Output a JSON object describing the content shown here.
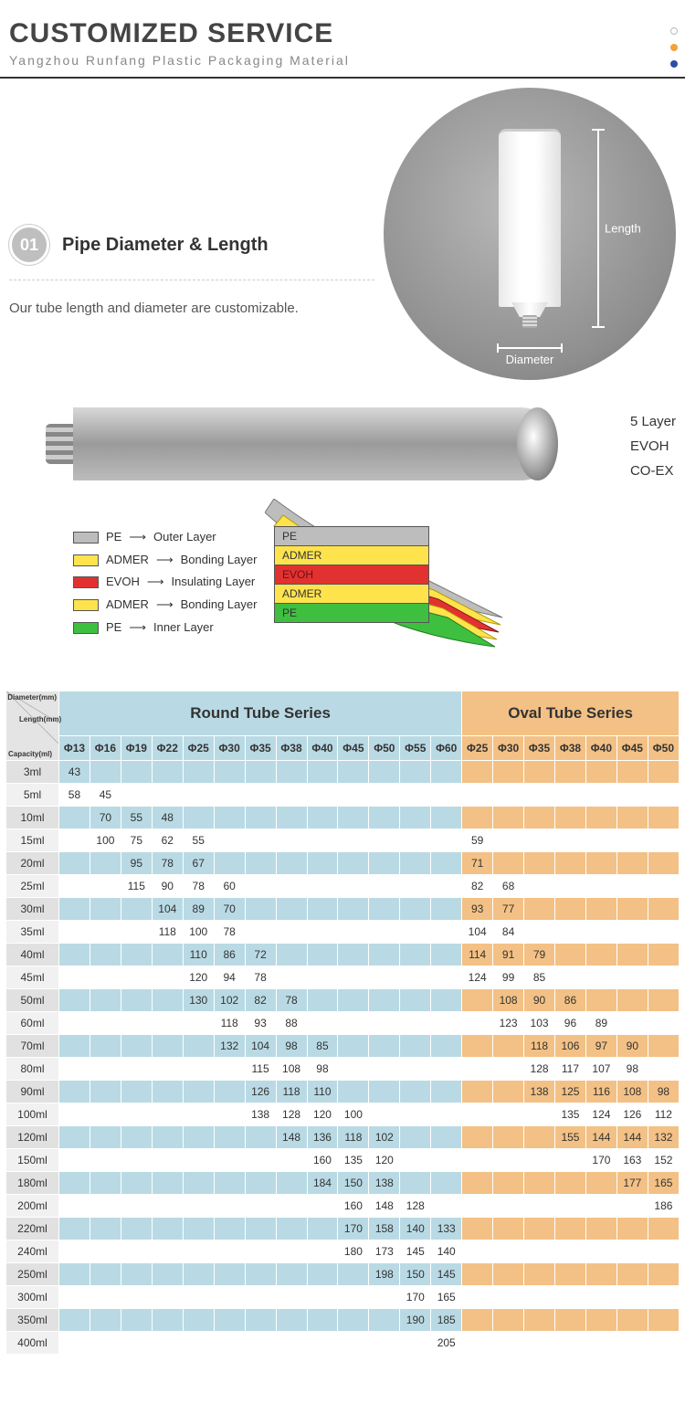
{
  "header": {
    "title": "CUSTOMIZED SERVICE",
    "subtitle": "Yangzhou Runfang Plastic Packaging Material",
    "dots": [
      "#ffffff",
      "#f3a23a",
      "#2c4fa0"
    ]
  },
  "section01": {
    "num": "01",
    "title": "Pipe Diameter & Length",
    "desc": "Our tube length and diameter are customizable.",
    "length_label": "Length",
    "diameter_label": "Diameter"
  },
  "layerDiagram": {
    "rightLabels": [
      "5 Layer",
      "EVOH",
      "CO-EX"
    ],
    "legend": [
      {
        "color": "#bdbdbd",
        "name": "PE",
        "role": "Outer Layer"
      },
      {
        "color": "#ffe34d",
        "name": "ADMER",
        "role": "Bonding Layer"
      },
      {
        "color": "#e23131",
        "name": "EVOH",
        "role": "Insulating Layer"
      },
      {
        "color": "#ffe34d",
        "name": "ADMER",
        "role": "Bonding Layer"
      },
      {
        "color": "#3fbf3f",
        "name": "PE",
        "role": "Inner Layer"
      }
    ],
    "stack": [
      {
        "color": "#bdbdbd",
        "text": "PE",
        "tc": "#333"
      },
      {
        "color": "#ffe34d",
        "text": "ADMER",
        "tc": "#333"
      },
      {
        "color": "#e23131",
        "text": "EVOH",
        "tc": "#6c1010"
      },
      {
        "color": "#ffe34d",
        "text": "ADMER",
        "tc": "#333"
      },
      {
        "color": "#3fbf3f",
        "text": "PE",
        "tc": "#333"
      }
    ]
  },
  "table": {
    "cornerLabels": [
      "Diameter(mm)",
      "Length(mm)",
      "Capacity(ml)"
    ],
    "roundTitle": "Round Tube Series",
    "ovalTitle": "Oval Tube Series",
    "roundCols": [
      "Φ13",
      "Φ16",
      "Φ19",
      "Φ22",
      "Φ25",
      "Φ30",
      "Φ35",
      "Φ38",
      "Φ40",
      "Φ45",
      "Φ50",
      "Φ55",
      "Φ60"
    ],
    "ovalCols": [
      "Φ25",
      "Φ30",
      "Φ35",
      "Φ38",
      "Φ40",
      "Φ45",
      "Φ50"
    ],
    "rows": [
      {
        "cap": "3ml",
        "r": [
          "43",
          "",
          "",
          "",
          "",
          "",
          "",
          "",
          "",
          "",
          "",
          "",
          ""
        ],
        "o": [
          "",
          "",
          "",
          "",
          "",
          "",
          ""
        ]
      },
      {
        "cap": "5ml",
        "r": [
          "58",
          "45",
          "",
          "",
          "",
          "",
          "",
          "",
          "",
          "",
          "",
          "",
          ""
        ],
        "o": [
          "",
          "",
          "",
          "",
          "",
          "",
          ""
        ]
      },
      {
        "cap": "10ml",
        "r": [
          "",
          "70",
          "55",
          "48",
          "",
          "",
          "",
          "",
          "",
          "",
          "",
          "",
          ""
        ],
        "o": [
          "",
          "",
          "",
          "",
          "",
          "",
          ""
        ]
      },
      {
        "cap": "15ml",
        "r": [
          "",
          "100",
          "75",
          "62",
          "55",
          "",
          "",
          "",
          "",
          "",
          "",
          "",
          ""
        ],
        "o": [
          "59",
          "",
          "",
          "",
          "",
          "",
          ""
        ]
      },
      {
        "cap": "20ml",
        "r": [
          "",
          "",
          "95",
          "78",
          "67",
          "",
          "",
          "",
          "",
          "",
          "",
          "",
          ""
        ],
        "o": [
          "71",
          "",
          "",
          "",
          "",
          "",
          ""
        ]
      },
      {
        "cap": "25ml",
        "r": [
          "",
          "",
          "115",
          "90",
          "78",
          "60",
          "",
          "",
          "",
          "",
          "",
          "",
          ""
        ],
        "o": [
          "82",
          "68",
          "",
          "",
          "",
          "",
          ""
        ]
      },
      {
        "cap": "30ml",
        "r": [
          "",
          "",
          "",
          "104",
          "89",
          "70",
          "",
          "",
          "",
          "",
          "",
          "",
          ""
        ],
        "o": [
          "93",
          "77",
          "",
          "",
          "",
          "",
          ""
        ]
      },
      {
        "cap": "35ml",
        "r": [
          "",
          "",
          "",
          "118",
          "100",
          "78",
          "",
          "",
          "",
          "",
          "",
          "",
          ""
        ],
        "o": [
          "104",
          "84",
          "",
          "",
          "",
          "",
          ""
        ]
      },
      {
        "cap": "40ml",
        "r": [
          "",
          "",
          "",
          "",
          "110",
          "86",
          "72",
          "",
          "",
          "",
          "",
          "",
          ""
        ],
        "o": [
          "114",
          "91",
          "79",
          "",
          "",
          "",
          ""
        ]
      },
      {
        "cap": "45ml",
        "r": [
          "",
          "",
          "",
          "",
          "120",
          "94",
          "78",
          "",
          "",
          "",
          "",
          "",
          ""
        ],
        "o": [
          "124",
          "99",
          "85",
          "",
          "",
          "",
          ""
        ]
      },
      {
        "cap": "50ml",
        "r": [
          "",
          "",
          "",
          "",
          "130",
          "102",
          "82",
          "78",
          "",
          "",
          "",
          "",
          ""
        ],
        "o": [
          "",
          "108",
          "90",
          "86",
          "",
          "",
          ""
        ]
      },
      {
        "cap": "60ml",
        "r": [
          "",
          "",
          "",
          "",
          "",
          "118",
          "93",
          "88",
          "",
          "",
          "",
          "",
          ""
        ],
        "o": [
          "",
          "123",
          "103",
          "96",
          "89",
          "",
          ""
        ]
      },
      {
        "cap": "70ml",
        "r": [
          "",
          "",
          "",
          "",
          "",
          "132",
          "104",
          "98",
          "85",
          "",
          "",
          "",
          ""
        ],
        "o": [
          "",
          "",
          "118",
          "106",
          "97",
          "90",
          ""
        ]
      },
      {
        "cap": "80ml",
        "r": [
          "",
          "",
          "",
          "",
          "",
          "",
          "115",
          "108",
          "98",
          "",
          "",
          "",
          ""
        ],
        "o": [
          "",
          "",
          "128",
          "117",
          "107",
          "98",
          ""
        ]
      },
      {
        "cap": "90ml",
        "r": [
          "",
          "",
          "",
          "",
          "",
          "",
          "126",
          "118",
          "110",
          "",
          "",
          "",
          ""
        ],
        "o": [
          "",
          "",
          "138",
          "125",
          "116",
          "108",
          "98"
        ]
      },
      {
        "cap": "100ml",
        "r": [
          "",
          "",
          "",
          "",
          "",
          "",
          "138",
          "128",
          "120",
          "100",
          "",
          "",
          ""
        ],
        "o": [
          "",
          "",
          "",
          "135",
          "124",
          "126",
          "112"
        ]
      },
      {
        "cap": "120ml",
        "r": [
          "",
          "",
          "",
          "",
          "",
          "",
          "",
          "148",
          "136",
          "118",
          "102",
          "",
          ""
        ],
        "o": [
          "",
          "",
          "",
          "155",
          "144",
          "144",
          "132"
        ]
      },
      {
        "cap": "150ml",
        "r": [
          "",
          "",
          "",
          "",
          "",
          "",
          "",
          "",
          "160",
          "135",
          "120",
          "",
          ""
        ],
        "o": [
          "",
          "",
          "",
          "",
          "170",
          "163",
          "152"
        ]
      },
      {
        "cap": "180ml",
        "r": [
          "",
          "",
          "",
          "",
          "",
          "",
          "",
          "",
          "184",
          "150",
          "138",
          "",
          ""
        ],
        "o": [
          "",
          "",
          "",
          "",
          "",
          "177",
          "165"
        ]
      },
      {
        "cap": "200ml",
        "r": [
          "",
          "",
          "",
          "",
          "",
          "",
          "",
          "",
          "",
          "160",
          "148",
          "128",
          ""
        ],
        "o": [
          "",
          "",
          "",
          "",
          "",
          "",
          "186"
        ]
      },
      {
        "cap": "220ml",
        "r": [
          "",
          "",
          "",
          "",
          "",
          "",
          "",
          "",
          "",
          "170",
          "158",
          "140",
          "133"
        ],
        "o": [
          "",
          "",
          "",
          "",
          "",
          "",
          ""
        ]
      },
      {
        "cap": "240ml",
        "r": [
          "",
          "",
          "",
          "",
          "",
          "",
          "",
          "",
          "",
          "180",
          "173",
          "145",
          "140"
        ],
        "o": [
          "",
          "",
          "",
          "",
          "",
          "",
          ""
        ]
      },
      {
        "cap": "250ml",
        "r": [
          "",
          "",
          "",
          "",
          "",
          "",
          "",
          "",
          "",
          "",
          "198",
          "150",
          "145"
        ],
        "o": [
          "",
          "",
          "",
          "",
          "",
          "",
          ""
        ]
      },
      {
        "cap": "300ml",
        "r": [
          "",
          "",
          "",
          "",
          "",
          "",
          "",
          "",
          "",
          "",
          "",
          "170",
          "165"
        ],
        "o": [
          "",
          "",
          "",
          "",
          "",
          "",
          ""
        ]
      },
      {
        "cap": "350ml",
        "r": [
          "",
          "",
          "",
          "",
          "",
          "",
          "",
          "",
          "",
          "",
          "",
          "190",
          "185"
        ],
        "o": [
          "",
          "",
          "",
          "",
          "",
          "",
          ""
        ]
      },
      {
        "cap": "400ml",
        "r": [
          "",
          "",
          "",
          "",
          "",
          "",
          "",
          "",
          "",
          "",
          "",
          "",
          "205"
        ],
        "o": [
          "",
          "",
          "",
          "",
          "",
          "",
          ""
        ]
      }
    ],
    "colors": {
      "roundHeader": "#b9dae4",
      "ovalHeader": "#f3c185",
      "rowLabel": "#e8e8e8"
    }
  }
}
